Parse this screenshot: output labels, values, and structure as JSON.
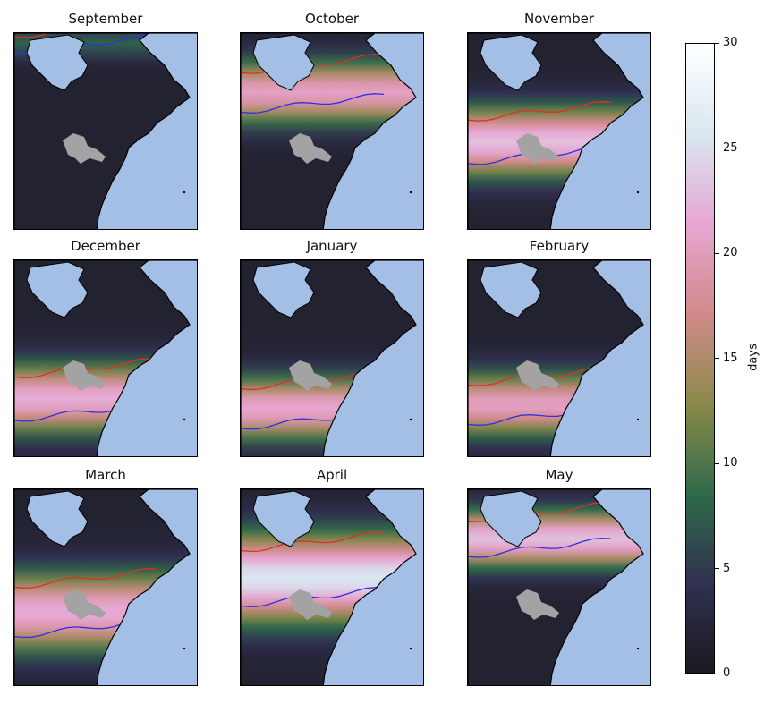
{
  "chart_data": {
    "type": "heatmap",
    "description_units": "days",
    "panels": [
      {
        "title": "September",
        "zone": {
          "peak_lat_frac": 0.05,
          "width": 0.1,
          "strength": 0.25
        }
      },
      {
        "title": "October",
        "zone": {
          "peak_lat_frac": 0.3,
          "width": 0.2,
          "strength": 0.75
        }
      },
      {
        "title": "November",
        "zone": {
          "peak_lat_frac": 0.55,
          "width": 0.22,
          "strength": 0.85
        }
      },
      {
        "title": "December",
        "zone": {
          "peak_lat_frac": 0.7,
          "width": 0.22,
          "strength": 0.8
        }
      },
      {
        "title": "January",
        "zone": {
          "peak_lat_frac": 0.75,
          "width": 0.2,
          "strength": 0.78
        }
      },
      {
        "title": "February",
        "zone": {
          "peak_lat_frac": 0.73,
          "width": 0.2,
          "strength": 0.75
        }
      },
      {
        "title": "March",
        "zone": {
          "peak_lat_frac": 0.62,
          "width": 0.25,
          "strength": 0.8
        }
      },
      {
        "title": "April",
        "zone": {
          "peak_lat_frac": 0.45,
          "width": 0.28,
          "strength": 0.95
        }
      },
      {
        "title": "May",
        "zone": {
          "peak_lat_frac": 0.25,
          "width": 0.18,
          "strength": 0.85
        }
      }
    ],
    "colorbar": {
      "label": "days",
      "min": 0,
      "max": 30,
      "ticks": [
        0,
        5,
        10,
        15,
        20,
        25,
        30
      ],
      "colormap": [
        "#1a1a1f",
        "#303050",
        "#2f6a4a",
        "#8a8a4a",
        "#d08a8a",
        "#e7a6d2",
        "#d8e8f0",
        "#ffffff"
      ]
    },
    "grid": false
  },
  "colors": {
    "ocean": "#a4bfe6",
    "hudson_bay": "#a4bfe6",
    "great_lakes": "#a3a3a3",
    "land_dark": "#1e1d22",
    "coastline": "#000000",
    "isoline_red": "#e03020",
    "isoline_blue": "#3030e0"
  }
}
